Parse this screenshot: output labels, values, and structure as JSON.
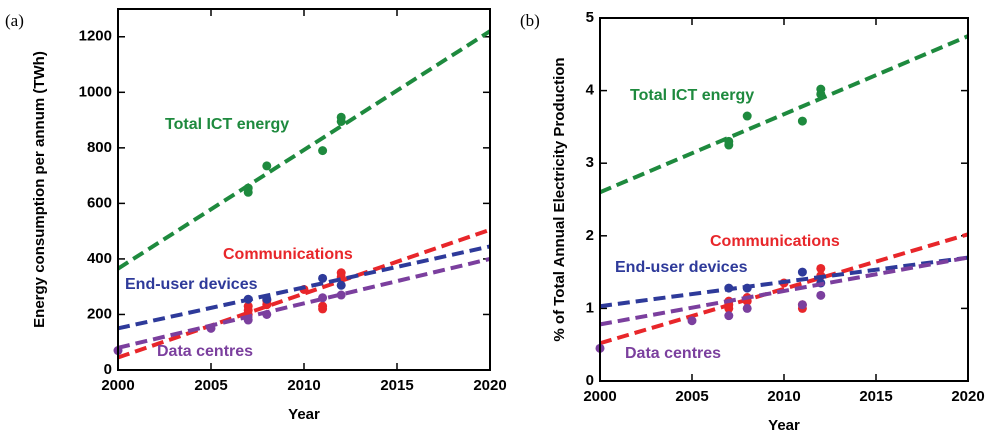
{
  "chart_data": [
    {
      "type": "scatter",
      "label": "(a)",
      "xlabel": "Year",
      "ylabel": "Energy consumption per annum (TWh)",
      "xlim": [
        2000,
        2020
      ],
      "xticks": [
        2000,
        2005,
        2010,
        2015,
        2020
      ],
      "ylim": [
        0,
        1300
      ],
      "yticks": [
        0,
        200,
        400,
        600,
        800,
        1000,
        1200
      ],
      "series": [
        {
          "name": "Total ICT energy",
          "color": "#1e8a3e",
          "x": [
            2007,
            2007,
            2008,
            2011,
            2012,
            2012
          ],
          "y": [
            640,
            655,
            735,
            790,
            910,
            895
          ],
          "trend": {
            "x": [
              2000,
              2020
            ],
            "y": [
              365,
              1220
            ]
          }
        },
        {
          "name": "Communications",
          "color": "#e8262a",
          "x": [
            2007,
            2007,
            2007,
            2008,
            2008,
            2010,
            2011,
            2011,
            2012,
            2012
          ],
          "y": [
            200,
            215,
            230,
            235,
            250,
            290,
            220,
            230,
            335,
            350
          ],
          "trend": {
            "x": [
              2000,
              2020
            ],
            "y": [
              45,
              505
            ]
          }
        },
        {
          "name": "End-user devices",
          "color": "#2e3a9a",
          "x": [
            2007,
            2008,
            2011,
            2012
          ],
          "y": [
            255,
            255,
            330,
            305
          ],
          "trend": {
            "x": [
              2000,
              2020
            ],
            "y": [
              150,
              445
            ]
          }
        },
        {
          "name": "Data centres",
          "color": "#7b3f9e",
          "x": [
            2000,
            2005,
            2007,
            2008,
            2011,
            2012
          ],
          "y": [
            70,
            150,
            180,
            200,
            260,
            270
          ],
          "trend": {
            "x": [
              2000,
              2020
            ],
            "y": [
              80,
              400
            ]
          }
        }
      ]
    },
    {
      "type": "scatter",
      "label": "(b)",
      "xlabel": "Year",
      "ylabel": "% of Total Annual Electricity Production",
      "xlim": [
        2000,
        2020
      ],
      "xticks": [
        2000,
        2005,
        2010,
        2015,
        2020
      ],
      "ylim": [
        0,
        5
      ],
      "yticks": [
        0,
        1,
        2,
        3,
        4,
        5
      ],
      "series": [
        {
          "name": "Total ICT energy",
          "color": "#1e8a3e",
          "x": [
            2007,
            2007,
            2008,
            2011,
            2012,
            2012
          ],
          "y": [
            3.25,
            3.3,
            3.65,
            3.58,
            4.02,
            3.95
          ],
          "trend": {
            "x": [
              2000,
              2020
            ],
            "y": [
              2.6,
              4.75
            ]
          }
        },
        {
          "name": "Communications",
          "color": "#e8262a",
          "x": [
            2007,
            2007,
            2007,
            2008,
            2008,
            2010,
            2011,
            2011,
            2012,
            2012
          ],
          "y": [
            1.0,
            1.05,
            1.1,
            1.1,
            1.15,
            1.35,
            1.0,
            1.05,
            1.45,
            1.55
          ],
          "trend": {
            "x": [
              2000,
              2020
            ],
            "y": [
              0.52,
              2.02
            ]
          }
        },
        {
          "name": "End-user devices",
          "color": "#2e3a9a",
          "x": [
            2007,
            2008,
            2011,
            2012
          ],
          "y": [
            1.28,
            1.28,
            1.5,
            1.35
          ],
          "trend": {
            "x": [
              2000,
              2020
            ],
            "y": [
              1.03,
              1.7
            ]
          }
        },
        {
          "name": "Data centres",
          "color": "#7b3f9e",
          "x": [
            2000,
            2005,
            2007,
            2008,
            2011,
            2012
          ],
          "y": [
            0.45,
            0.83,
            0.9,
            1.0,
            1.05,
            1.18
          ],
          "trend": {
            "x": [
              2000,
              2020
            ],
            "y": [
              0.78,
              1.7
            ]
          }
        }
      ]
    }
  ]
}
